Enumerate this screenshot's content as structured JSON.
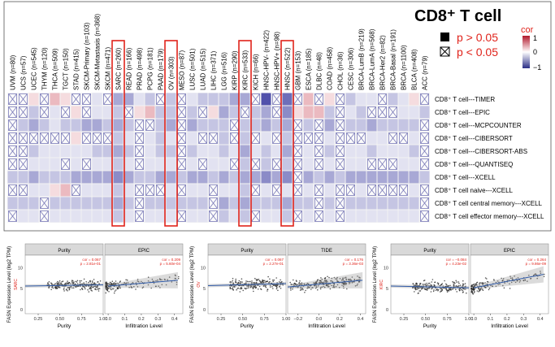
{
  "heatmap": {
    "title": "CD8⁺ T cell",
    "legend": {
      "filled_label": "p > 0.05",
      "crossed_label": "p < 0.05",
      "scale_title": "cor",
      "scale_ticks": [
        "1",
        "0",
        "−1"
      ],
      "colors": {
        "pos": "#c0263a",
        "mid": "#ffffff",
        "neg": "#2b2e86",
        "highlight": "#e0231b",
        "label_red": "#e0231b"
      }
    },
    "cancers": [
      "UVM (n=80)",
      "UCS (n=57)",
      "UCEC (n=545)",
      "THYM (n=120)",
      "THCA (n=509)",
      "TGCT (n=150)",
      "STAD (n=415)",
      "SKCM-Primary (n=103)",
      "SKCM-Metastasis (n=368)",
      "SKCM (n=471)",
      "SARC (n=260)",
      "READ (n=166)",
      "PRAD (n=498)",
      "PCPG (n=181)",
      "PAAD (n=179)",
      "OV (n=303)",
      "MESO (n=87)",
      "LUSC (n=501)",
      "LUAD (n=515)",
      "LIHC (n=371)",
      "LGG (n=516)",
      "KIRP (n=290)",
      "KIRC (n=533)",
      "KICH (n=66)",
      "HNSC-HPV- (n=422)",
      "HNSC-HPV+ (n=98)",
      "HNSC (n=522)",
      "GBM (n=153)",
      "ESCA (n=185)",
      "DLBC (n=48)",
      "COAD (n=458)",
      "CHOL (n=36)",
      "CESC (n=306)",
      "BRCA-LumB (n=219)",
      "BRCA-LumA (n=568)",
      "BRCA-Her2 (n=82)",
      "BRCA-Basal (n=191)",
      "BRCA (n=1100)",
      "BLCA (n=408)",
      "ACC (n=79)"
    ],
    "highlighted_cancers": [
      "SARC (n=260)",
      "OV (n=303)",
      "KIRC (n=533)",
      "HNSC (n=522)"
    ],
    "methods": [
      "CD8⁺ T cell---TIMER",
      "CD8⁺ T cell---EPIC",
      "CD8⁺ T cell---MCPCOUNTER",
      "CD8⁺ T cell---CIBERSORT",
      "CD8⁺ T cell---CIBERSORT-ABS",
      "CD8⁺ T cell---QUANTISEQ",
      "CD8⁺ T cell---XCELL",
      "CD8⁺ T cell naive---XCELL",
      "CD8⁺ T cell central memory---XCELL",
      "CD8⁺ T cell effector memory---XCELL"
    ],
    "cor": [
      [
        0.0,
        0.0,
        0.1,
        0.2,
        0.2,
        0.1,
        0.0,
        0.0,
        -0.1,
        0.0,
        -0.3,
        -0.3,
        -0.1,
        -0.2,
        0.0,
        -0.2,
        0.1,
        -0.1,
        -0.2,
        -0.2,
        -0.2,
        -0.3,
        -0.3,
        0.0,
        -0.6,
        -0.1,
        -0.5,
        0.0,
        0.2,
        0.0,
        0.1,
        -0.1,
        -0.2,
        -0.1,
        -0.1,
        -0.1,
        -0.2,
        -0.1,
        0.1,
        0.0
      ],
      [
        -0.1,
        0.0,
        -0.2,
        0.0,
        -0.1,
        0.0,
        0.1,
        0.0,
        -0.1,
        -0.1,
        -0.2,
        -0.1,
        0.1,
        0.2,
        -0.2,
        -0.2,
        -0.1,
        -0.2,
        -0.1,
        0.1,
        -0.3,
        -0.2,
        0.0,
        -0.2,
        -0.3,
        -0.1,
        -0.4,
        0.1,
        0.2,
        0.2,
        -0.2,
        -0.1,
        -0.1,
        -0.2,
        0.0,
        0.0,
        0.0,
        -0.1,
        -0.1,
        -0.2
      ],
      [
        -0.1,
        -0.2,
        -0.3,
        -0.2,
        -0.1,
        -0.2,
        -0.2,
        -0.3,
        -0.3,
        -0.2,
        -0.3,
        -0.2,
        -0.1,
        -0.1,
        -0.2,
        -0.3,
        -0.1,
        -0.3,
        -0.2,
        -0.2,
        -0.2,
        -0.1,
        -0.2,
        -0.2,
        -0.3,
        -0.2,
        -0.3,
        0.0,
        -0.2,
        0.0,
        -0.3,
        -0.1,
        -0.2,
        -0.2,
        -0.3,
        -0.2,
        -0.2,
        -0.2,
        -0.2,
        -0.1
      ],
      [
        0.0,
        0.0,
        0.0,
        0.0,
        0.0,
        0.0,
        0.1,
        0.0,
        0.0,
        0.0,
        -0.2,
        -0.1,
        0.0,
        -0.1,
        -0.2,
        -0.1,
        0.0,
        -0.1,
        0.0,
        0.0,
        -0.2,
        0.0,
        -0.2,
        0.0,
        -0.1,
        0.0,
        -0.2,
        0.0,
        0.0,
        0.0,
        -0.1,
        0.0,
        0.0,
        0.0,
        -0.1,
        -0.1,
        0.0,
        0.0,
        -0.1,
        0.0
      ],
      [
        -0.1,
        0.0,
        -0.2,
        -0.1,
        -0.1,
        -0.1,
        -0.1,
        -0.1,
        -0.2,
        -0.2,
        -0.3,
        -0.2,
        -0.1,
        -0.1,
        -0.2,
        -0.2,
        -0.1,
        -0.2,
        -0.1,
        -0.1,
        -0.2,
        -0.1,
        -0.3,
        -0.1,
        -0.2,
        -0.1,
        -0.3,
        0.0,
        -0.1,
        0.3,
        -0.2,
        -0.1,
        -0.1,
        -0.1,
        -0.2,
        -0.1,
        -0.1,
        -0.1,
        -0.2,
        -0.1
      ],
      [
        0.0,
        0.0,
        -0.1,
        -0.1,
        -0.1,
        0.0,
        -0.1,
        0.0,
        -0.1,
        -0.1,
        -0.2,
        -0.1,
        0.0,
        -0.1,
        -0.1,
        -0.1,
        0.0,
        -0.1,
        0.0,
        -0.1,
        -0.1,
        0.0,
        -0.2,
        0.0,
        -0.2,
        0.0,
        -0.2,
        0.0,
        -0.1,
        0.0,
        -0.1,
        0.0,
        -0.1,
        -0.1,
        0.0,
        0.0,
        0.0,
        -0.1,
        -0.1,
        0.0
      ],
      [
        -0.2,
        -0.2,
        -0.3,
        -0.2,
        -0.2,
        -0.2,
        -0.3,
        -0.3,
        -0.3,
        -0.3,
        -0.4,
        -0.3,
        -0.2,
        -0.2,
        -0.3,
        -0.3,
        -0.2,
        -0.3,
        -0.3,
        -0.2,
        -0.3,
        -0.2,
        -0.3,
        -0.3,
        -0.4,
        -0.3,
        -0.4,
        -0.1,
        -0.3,
        -0.2,
        -0.3,
        -0.2,
        -0.3,
        -0.3,
        -0.3,
        -0.3,
        -0.3,
        -0.3,
        -0.3,
        -0.2
      ],
      [
        0.0,
        0.0,
        -0.1,
        -0.1,
        0.1,
        0.2,
        0.0,
        -0.1,
        -0.1,
        -0.1,
        -0.2,
        -0.1,
        0.0,
        0.0,
        0.0,
        -0.1,
        0.0,
        -0.1,
        -0.1,
        0.0,
        -0.1,
        -0.1,
        -0.2,
        0.0,
        -0.1,
        0.0,
        -0.1,
        0.0,
        -0.1,
        0.0,
        -0.1,
        0.0,
        0.0,
        -0.1,
        0.0,
        0.0,
        0.0,
        0.0,
        -0.1,
        0.0
      ],
      [
        -0.2,
        -0.2,
        -0.2,
        -0.1,
        -0.2,
        -0.2,
        -0.2,
        -0.2,
        -0.2,
        -0.2,
        -0.3,
        -0.2,
        -0.1,
        -0.2,
        -0.2,
        -0.2,
        -0.2,
        -0.2,
        -0.2,
        -0.1,
        -0.3,
        -0.2,
        -0.3,
        -0.2,
        -0.2,
        -0.2,
        -0.3,
        -0.2,
        -0.2,
        -0.1,
        -0.2,
        -0.1,
        -0.2,
        -0.2,
        -0.2,
        -0.2,
        -0.2,
        -0.2,
        -0.2,
        -0.1
      ],
      [
        0.0,
        -0.1,
        -0.1,
        0.0,
        -0.1,
        -0.1,
        -0.1,
        -0.1,
        -0.1,
        -0.1,
        -0.2,
        -0.1,
        0.0,
        -0.1,
        -0.1,
        -0.1,
        0.0,
        -0.1,
        -0.1,
        0.0,
        -0.2,
        -0.1,
        -0.2,
        -0.1,
        -0.1,
        -0.1,
        -0.2,
        0.0,
        -0.1,
        0.0,
        -0.1,
        0.0,
        -0.1,
        -0.1,
        -0.1,
        -0.1,
        -0.1,
        -0.1,
        -0.1,
        0.0
      ]
    ],
    "crossed": [
      [
        1,
        1,
        0,
        1,
        0,
        0,
        1,
        1,
        0,
        1,
        0,
        0,
        0,
        0,
        1,
        0,
        1,
        0,
        0,
        0,
        0,
        0,
        0,
        1,
        0,
        1,
        0,
        1,
        0,
        1,
        0,
        1,
        0,
        0,
        0,
        1,
        0,
        0,
        0,
        1
      ],
      [
        1,
        1,
        0,
        1,
        0,
        1,
        0,
        1,
        0,
        0,
        0,
        1,
        0,
        0,
        0,
        0,
        1,
        0,
        1,
        0,
        0,
        0,
        1,
        0,
        0,
        1,
        0,
        0,
        0,
        0,
        0,
        1,
        0,
        0,
        1,
        1,
        1,
        0,
        0,
        0
      ],
      [
        1,
        0,
        0,
        0,
        0,
        0,
        0,
        0,
        0,
        0,
        0,
        0,
        1,
        1,
        0,
        0,
        1,
        0,
        0,
        0,
        0,
        1,
        0,
        0,
        0,
        0,
        0,
        1,
        0,
        1,
        0,
        1,
        0,
        0,
        0,
        0,
        0,
        0,
        0,
        1
      ],
      [
        1,
        1,
        1,
        1,
        1,
        1,
        0,
        1,
        1,
        1,
        0,
        0,
        1,
        0,
        0,
        0,
        1,
        0,
        1,
        1,
        0,
        1,
        0,
        1,
        0,
        1,
        0,
        1,
        1,
        1,
        0,
        1,
        1,
        1,
        0,
        0,
        1,
        1,
        0,
        1
      ],
      [
        1,
        1,
        0,
        0,
        0,
        0,
        0,
        0,
        0,
        0,
        0,
        0,
        1,
        0,
        0,
        0,
        1,
        0,
        0,
        0,
        0,
        0,
        0,
        0,
        0,
        0,
        0,
        1,
        0,
        1,
        0,
        1,
        0,
        0,
        0,
        0,
        0,
        0,
        0,
        1
      ],
      [
        1,
        1,
        0,
        0,
        0,
        1,
        0,
        1,
        0,
        0,
        0,
        0,
        1,
        0,
        0,
        0,
        1,
        0,
        1,
        0,
        0,
        1,
        0,
        1,
        0,
        1,
        0,
        1,
        0,
        1,
        0,
        1,
        0,
        0,
        1,
        1,
        1,
        0,
        0,
        1
      ],
      [
        0,
        0,
        0,
        0,
        0,
        0,
        0,
        0,
        0,
        0,
        0,
        0,
        0,
        0,
        0,
        0,
        0,
        0,
        0,
        0,
        0,
        0,
        0,
        0,
        0,
        0,
        0,
        1,
        0,
        0,
        0,
        0,
        0,
        0,
        0,
        0,
        0,
        0,
        0,
        0
      ],
      [
        1,
        1,
        0,
        0,
        0,
        0,
        1,
        0,
        0,
        0,
        0,
        0,
        1,
        1,
        1,
        0,
        1,
        0,
        0,
        1,
        0,
        0,
        0,
        1,
        0,
        1,
        0,
        1,
        0,
        1,
        0,
        1,
        1,
        0,
        1,
        1,
        1,
        1,
        0,
        1
      ],
      [
        0,
        0,
        0,
        1,
        0,
        0,
        0,
        0,
        0,
        0,
        0,
        0,
        1,
        0,
        0,
        0,
        0,
        0,
        0,
        1,
        0,
        0,
        0,
        0,
        0,
        0,
        0,
        0,
        0,
        1,
        0,
        1,
        0,
        0,
        0,
        0,
        0,
        0,
        0,
        1
      ],
      [
        1,
        0,
        0,
        1,
        0,
        0,
        0,
        0,
        0,
        0,
        0,
        0,
        1,
        0,
        0,
        0,
        1,
        0,
        0,
        1,
        0,
        0,
        0,
        1,
        0,
        0,
        0,
        1,
        0,
        1,
        0,
        1,
        0,
        0,
        0,
        0,
        0,
        0,
        0,
        1
      ]
    ]
  },
  "scatter_panels": [
    {
      "ylabel": "FASN Expression Level (log2 TPM)",
      "row_label": "SARC",
      "facets": [
        {
          "strip": "Purity",
          "xlabel": "Purity",
          "xticks": [
            "0.25",
            "0.50",
            "0.75",
            "1.00"
          ],
          "xlim": [
            0.1,
            1.0
          ],
          "stat1": "cor = 0.067",
          "stat2": "p = 2.81e-01",
          "trend": [
            [
              0.1,
              5.6
            ],
            [
              1.0,
              5.9
            ]
          ]
        },
        {
          "strip": "EPIC",
          "xlabel": "Infiltration Level",
          "xticks": [
            "0.0",
            "0.1",
            "0.2",
            "0.3",
            "0.4"
          ],
          "xlim": [
            -0.02,
            0.45
          ],
          "stat1": "cor = 0.209",
          "stat2": "p = 5.60e-04",
          "trend": [
            [
              0.0,
              5.6
            ],
            [
              0.42,
              7.0
            ]
          ]
        }
      ],
      "yticks": [
        "0",
        "5",
        "10"
      ],
      "ylim": [
        -1,
        13
      ]
    },
    {
      "ylabel": "FASN Expression Level (log2 TPM)",
      "row_label": "OV",
      "facets": [
        {
          "strip": "Purity",
          "xlabel": "Purity",
          "xticks": [
            "0.25",
            "0.50",
            "0.75",
            "1.00"
          ],
          "xlim": [
            0.1,
            1.0
          ],
          "stat1": "cor = 0.067",
          "stat2": "p = 2.27e-01",
          "trend": [
            [
              0.1,
              5.7
            ],
            [
              1.0,
              6.2
            ]
          ]
        },
        {
          "strip": "TIDE",
          "xlabel": "Infiltration Level",
          "xticks": [
            "−0.2",
            "0.0",
            "0.2",
            "0.4"
          ],
          "xlim": [
            -0.3,
            0.45
          ],
          "stat1": "cor = 0.176",
          "stat2": "p = 3.36e-03",
          "trend": [
            [
              -0.3,
              5.4
            ],
            [
              0.42,
              7.0
            ]
          ]
        }
      ],
      "yticks": [
        "0",
        "5",
        "10"
      ],
      "ylim": [
        -1,
        13
      ]
    },
    {
      "ylabel": "FASN Expression Level (log2 TPM)",
      "row_label": "KIRC",
      "facets": [
        {
          "strip": "Purity",
          "xlabel": "Purity",
          "xticks": [
            "0.25",
            "0.50",
            "0.75",
            "1.00"
          ],
          "xlim": [
            0.1,
            1.0
          ],
          "stat1": "cor = −0.084",
          "stat2": "p = 4.23e-02",
          "trend": [
            [
              0.1,
              5.6
            ],
            [
              1.0,
              5.2
            ]
          ]
        },
        {
          "strip": "EPIC",
          "xlabel": "Infiltration Level",
          "xticks": [
            "0.0",
            "0.1",
            "0.2",
            "0.3",
            "0.4"
          ],
          "xlim": [
            -0.02,
            0.45
          ],
          "stat1": "cor = 0.264",
          "stat2": "p = 9.86e-09",
          "trend": [
            [
              0.0,
              5.2
            ],
            [
              0.42,
              8.4
            ]
          ]
        }
      ],
      "yticks": [
        "0",
        "5",
        "10"
      ],
      "ylim": [
        -1,
        13
      ]
    }
  ]
}
